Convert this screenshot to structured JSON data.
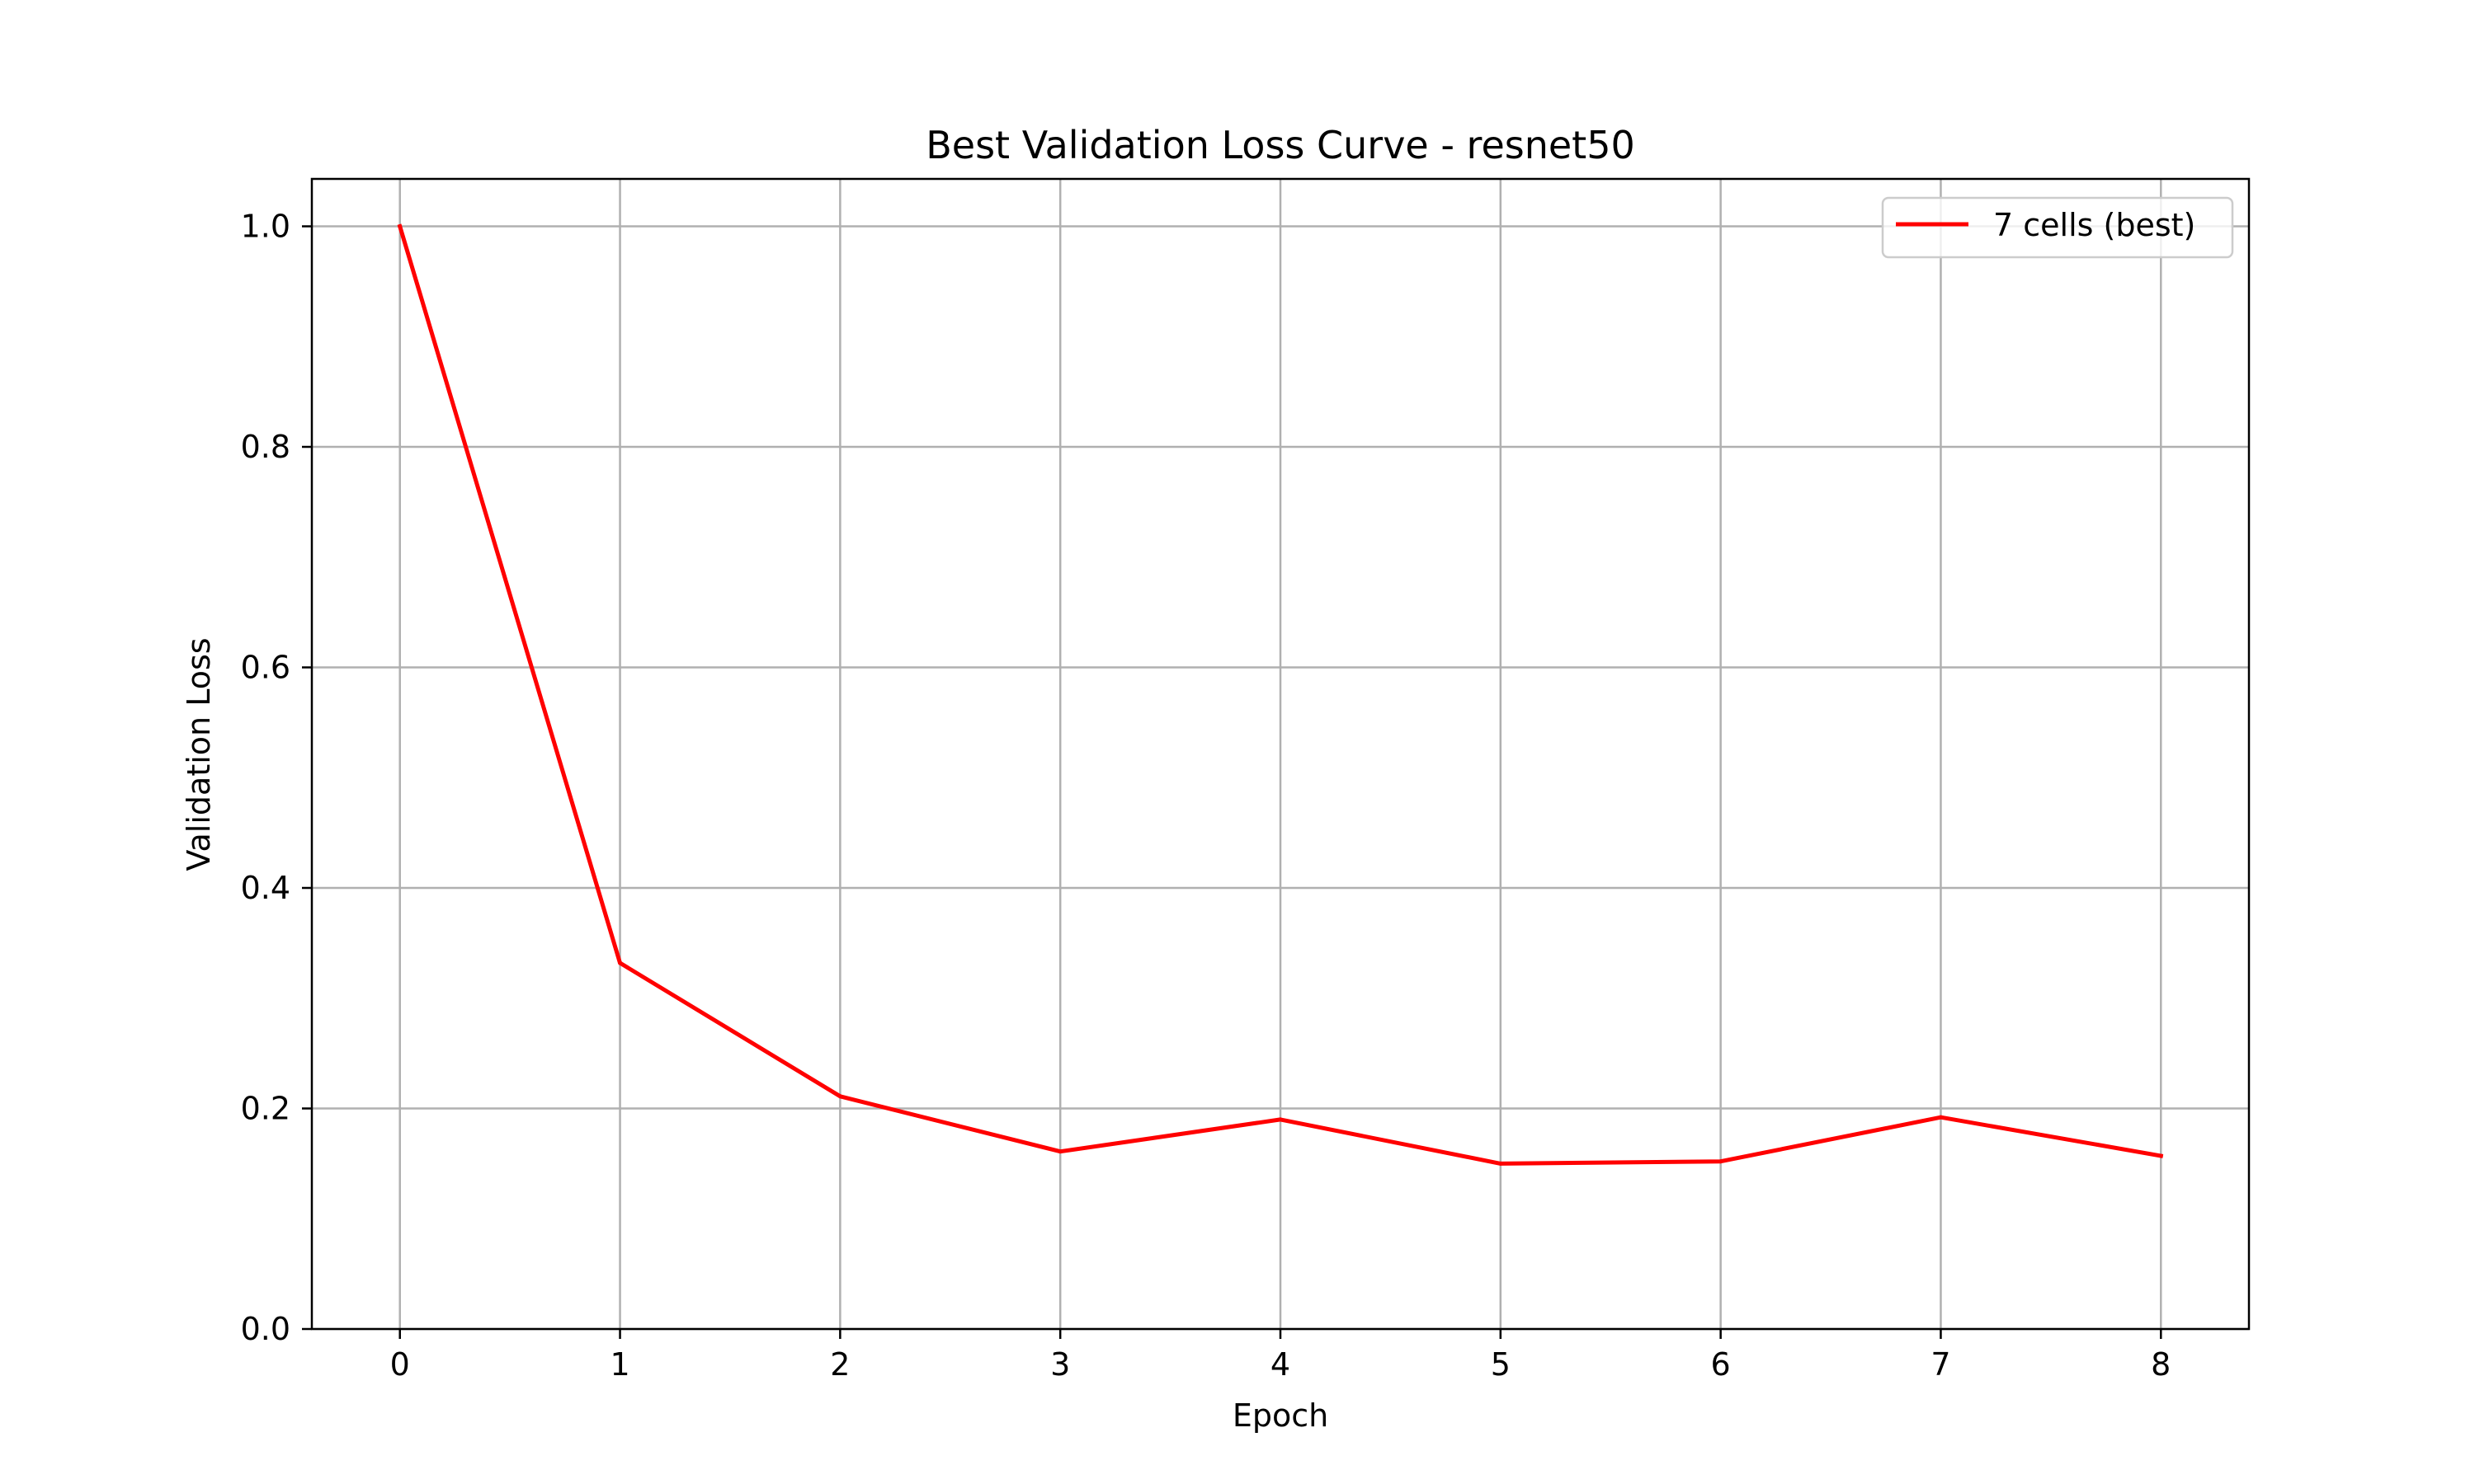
{
  "chart_data": {
    "type": "line",
    "title": "Best Validation Loss Curve - resnet50",
    "xlabel": "Epoch",
    "ylabel": "Validation Loss",
    "xlim": [
      -0.4,
      8.4
    ],
    "ylim": [
      0.0,
      1.043
    ],
    "x_ticks": [
      0,
      1,
      2,
      3,
      4,
      5,
      6,
      7,
      8
    ],
    "x_tick_labels": [
      "0",
      "1",
      "2",
      "3",
      "4",
      "5",
      "6",
      "7",
      "8"
    ],
    "y_ticks": [
      0.0,
      0.2,
      0.4,
      0.6,
      0.8,
      1.0
    ],
    "y_tick_labels": [
      "0.0",
      "0.2",
      "0.4",
      "0.6",
      "0.8",
      "1.0"
    ],
    "grid": true,
    "legend_position": "top-right",
    "series": [
      {
        "name": "7 cells (best)",
        "color": "#ff0000",
        "x": [
          0,
          1,
          2,
          3,
          4,
          5,
          6,
          7,
          8
        ],
        "y": [
          1.0,
          0.332,
          0.211,
          0.161,
          0.19,
          0.15,
          0.152,
          0.192,
          0.157
        ]
      }
    ]
  }
}
